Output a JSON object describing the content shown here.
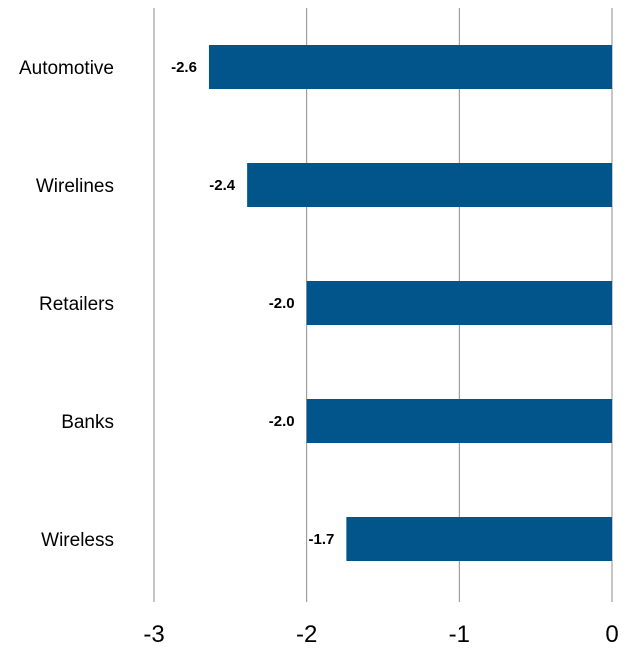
{
  "chart_data": {
    "type": "bar",
    "orientation": "horizontal",
    "title": "",
    "xlabel": "",
    "ylabel": "",
    "categories": [
      "Automotive",
      "Wirelines",
      "Retailers",
      "Banks",
      "Wireless"
    ],
    "values": [
      -2.64,
      -2.39,
      -2.0,
      -2.0,
      -1.74
    ],
    "data_labels": [
      "-2.6",
      "-2.4",
      "-2.0",
      "-2.0",
      "-1.7"
    ],
    "xlim": [
      -3,
      0
    ],
    "x_ticks": [
      -3,
      -2,
      -1,
      0
    ],
    "x_tick_labels": [
      "-3",
      "-2",
      "-1",
      "0"
    ],
    "grid": "vertical",
    "legend": "none",
    "colors": {
      "bar": "#02558B",
      "gridline": "#8C8C8C",
      "text": "#000000"
    }
  }
}
